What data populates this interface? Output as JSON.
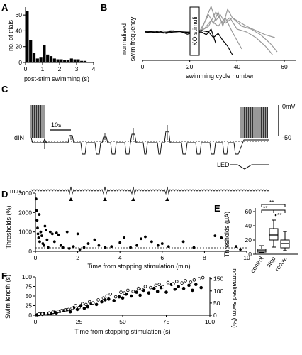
{
  "panels": {
    "A": {
      "label": "A",
      "ylabel": "no. of trials",
      "xlabel": "post-stim swimming (s)",
      "chart_data": {
        "type": "bar",
        "x": [
          0.1,
          0.3,
          0.5,
          0.7,
          0.9,
          1.1,
          1.3,
          1.5,
          1.7,
          1.9,
          2.1,
          2.3,
          2.5,
          2.7,
          2.9,
          3.1,
          3.3,
          3.5
        ],
        "values": [
          65,
          28,
          12,
          5,
          7,
          22,
          10,
          8,
          5,
          4,
          4,
          3,
          3,
          5,
          4,
          4,
          2,
          2
        ],
        "xticks": [
          "0",
          "1",
          "2",
          "3",
          "4"
        ],
        "yticks": [
          "0",
          "20",
          "40",
          "60"
        ],
        "xlim": [
          0,
          4
        ],
        "ylim": [
          0,
          70
        ]
      }
    },
    "B": {
      "label": "B",
      "ylabel": "normalised swim frequency",
      "xlabel": "swimming cycle number",
      "annotation": "KO stimuli",
      "chart_data": {
        "type": "line",
        "xticks": [
          "0",
          "20",
          "40",
          "60"
        ],
        "xlim": [
          0,
          60
        ],
        "ylim": [
          0,
          2
        ],
        "series": [
          {
            "color": "#999999",
            "x": [
              1,
              4,
              8,
              12,
              16,
              20,
              24,
              26,
              28,
              30,
              32,
              34,
              36,
              38,
              40,
              44,
              48,
              52,
              56
            ],
            "y": [
              1.0,
              1.02,
              0.98,
              1.05,
              1.0,
              0.98,
              1.0,
              1.3,
              1.6,
              1.3,
              1.7,
              1.2,
              1.8,
              1.5,
              1.4,
              1.2,
              1.05,
              0.9,
              0.8
            ]
          },
          {
            "color": "#999999",
            "x": [
              1,
              5,
              9,
              13,
              17,
              21,
              25,
              27,
              29,
              31,
              33,
              35,
              38,
              42,
              46,
              50,
              54,
              57
            ],
            "y": [
              0.98,
              1.0,
              1.04,
              0.97,
              1.02,
              1.0,
              1.05,
              1.5,
              1.9,
              1.4,
              1.6,
              1.3,
              1.5,
              1.2,
              1.1,
              0.9,
              0.6,
              0.3
            ]
          },
          {
            "color": "#999999",
            "x": [
              1,
              6,
              10,
              14,
              18,
              22,
              26,
              29,
              32,
              35,
              38,
              40,
              42
            ],
            "y": [
              1.02,
              0.97,
              1.0,
              1.03,
              0.98,
              1.0,
              1.1,
              1.4,
              1.2,
              1.5,
              1.0,
              0.7,
              0.4
            ]
          },
          {
            "color": "#999999",
            "x": [
              1,
              5,
              10,
              15,
              20,
              24,
              28,
              31,
              34,
              37,
              40,
              44,
              48,
              52,
              55
            ],
            "y": [
              1.0,
              1.0,
              0.97,
              1.0,
              1.03,
              1.0,
              1.2,
              1.7,
              1.3,
              1.5,
              1.1,
              1.0,
              0.8,
              0.5,
              0.2
            ]
          },
          {
            "color": "#000000",
            "x": [
              1,
              4,
              7,
              10,
              13,
              16,
              19,
              22,
              25,
              28,
              30,
              32,
              34,
              36,
              38
            ],
            "y": [
              1.0,
              0.97,
              1.03,
              0.95,
              1.0,
              1.02,
              0.92,
              1.0,
              1.05,
              1.0,
              0.8,
              0.95,
              0.7,
              0.5,
              0.2
            ]
          },
          {
            "color": "#000000",
            "x": [
              1,
              5,
              9,
              13,
              17,
              21,
              25,
              27,
              29,
              31
            ],
            "y": [
              1.03,
              1.0,
              0.96,
              1.04,
              1.0,
              0.97,
              1.0,
              0.9,
              1.1,
              0.6
            ]
          }
        ]
      }
    },
    "C": {
      "label": "C",
      "trace_label": "dIN",
      "mn_label": "m.n.",
      "scale_time": "10s",
      "scale_voltage": "0mV",
      "level": "-50",
      "led_label": "LED"
    },
    "D": {
      "label": "D",
      "ylabel": "Thresholds (%)",
      "xlabel": "Time from stopping stimulation (min)",
      "chart_data": {
        "type": "scatter",
        "xticks": [
          "0",
          "2",
          "4",
          "6",
          "8",
          "10"
        ],
        "yticks": [
          "0",
          "1000",
          "2000",
          "3000"
        ],
        "xlim": [
          0,
          10
        ],
        "ylim": [
          0,
          3000
        ],
        "x": [
          0.03,
          0.05,
          0.08,
          0.1,
          0.12,
          0.15,
          0.18,
          0.2,
          0.25,
          0.3,
          0.35,
          0.4,
          0.45,
          0.5,
          0.55,
          0.6,
          0.7,
          0.8,
          0.9,
          1.0,
          1.1,
          1.2,
          1.3,
          1.5,
          1.6,
          1.8,
          2.0,
          2.1,
          2.3,
          2.5,
          2.8,
          3.0,
          3.3,
          3.6,
          4.0,
          4.2,
          4.5,
          4.8,
          5.0,
          5.2,
          5.5,
          5.8,
          6.0,
          6.3,
          7.0,
          7.5,
          8.5,
          8.8,
          9.5,
          9.7
        ],
        "y": [
          2700,
          2100,
          1600,
          1200,
          900,
          700,
          1900,
          500,
          1000,
          800,
          400,
          300,
          1300,
          1100,
          600,
          200,
          1000,
          900,
          500,
          950,
          850,
          300,
          200,
          1000,
          150,
          250,
          900,
          100,
          200,
          400,
          600,
          300,
          200,
          250,
          450,
          700,
          200,
          300,
          650,
          750,
          500,
          300,
          400,
          250,
          500,
          200,
          800,
          700,
          250,
          100
        ]
      }
    },
    "E": {
      "label": "E",
      "ylabel": "Thresholds (μA)",
      "sig": [
        "**",
        "**",
        "**"
      ],
      "chart_data": {
        "type": "box",
        "categories": [
          "control",
          "stop",
          "recov."
        ],
        "yticks": [
          "0",
          "20",
          "40",
          "60"
        ],
        "ylim": [
          0,
          65
        ],
        "series": [
          {
            "name": "control",
            "min": 2,
            "q1": 3,
            "median": 5,
            "q3": 7,
            "max": 12
          },
          {
            "name": "stop",
            "min": 10,
            "q1": 20,
            "median": 27,
            "q3": 36,
            "max": 48,
            "outliers": [
              55
            ]
          },
          {
            "name": "recov.",
            "min": 5,
            "q1": 9,
            "median": 15,
            "q3": 20,
            "max": 32
          }
        ]
      }
    },
    "F": {
      "label": "F",
      "ylabel": "Swim length (s)",
      "ylabel_right": "normalised swim (%)",
      "xlabel": "Time from stopping stimulation (s)",
      "chart_data": {
        "type": "scatter",
        "xticks": [
          "0",
          "25",
          "50",
          "75",
          "100"
        ],
        "yticks": [
          "0",
          "25",
          "50",
          "75",
          "100"
        ],
        "yticks_right": [
          "0",
          "50",
          "100",
          "150"
        ],
        "xlim": [
          0,
          100
        ],
        "ylim": [
          0,
          100
        ],
        "series": [
          {
            "name": "filled",
            "x": [
              1,
              2,
              3,
              4,
              5,
              6,
              7,
              8,
              9,
              10,
              11,
              12,
              14,
              16,
              18,
              20,
              22,
              24,
              26,
              28,
              30,
              32,
              35,
              38,
              40,
              42,
              45,
              48,
              50,
              52,
              55,
              58,
              60,
              62,
              65,
              68,
              70,
              72,
              75,
              78,
              80,
              82,
              85,
              88,
              90,
              92,
              95
            ],
            "y": [
              1,
              2,
              3,
              2,
              4,
              5,
              3,
              6,
              5,
              7,
              8,
              6,
              10,
              12,
              14,
              9,
              20,
              15,
              25,
              18,
              22,
              30,
              28,
              35,
              40,
              42,
              38,
              48,
              45,
              55,
              50,
              60,
              52,
              65,
              58,
              70,
              62,
              72,
              60,
              80,
              68,
              75,
              70,
              78,
              65,
              80,
              72
            ]
          },
          {
            "name": "open",
            "x": [
              2,
              4,
              6,
              8,
              10,
              13,
              15,
              17,
              19,
              21,
              23,
              25,
              27,
              29,
              31,
              33,
              36,
              39,
              41,
              43,
              46,
              49,
              51,
              53,
              56,
              59,
              61,
              63,
              66,
              69,
              71,
              73,
              76,
              79,
              81,
              84,
              86,
              89,
              91,
              94,
              96
            ],
            "y": [
              3,
              4,
              5,
              6,
              8,
              10,
              12,
              14,
              15,
              18,
              25,
              20,
              30,
              28,
              35,
              32,
              40,
              45,
              50,
              55,
              48,
              60,
              58,
              65,
              62,
              70,
              68,
              75,
              72,
              78,
              80,
              74,
              85,
              82,
              88,
              84,
              90,
              86,
              92,
              95,
              98
            ]
          }
        ]
      }
    }
  }
}
